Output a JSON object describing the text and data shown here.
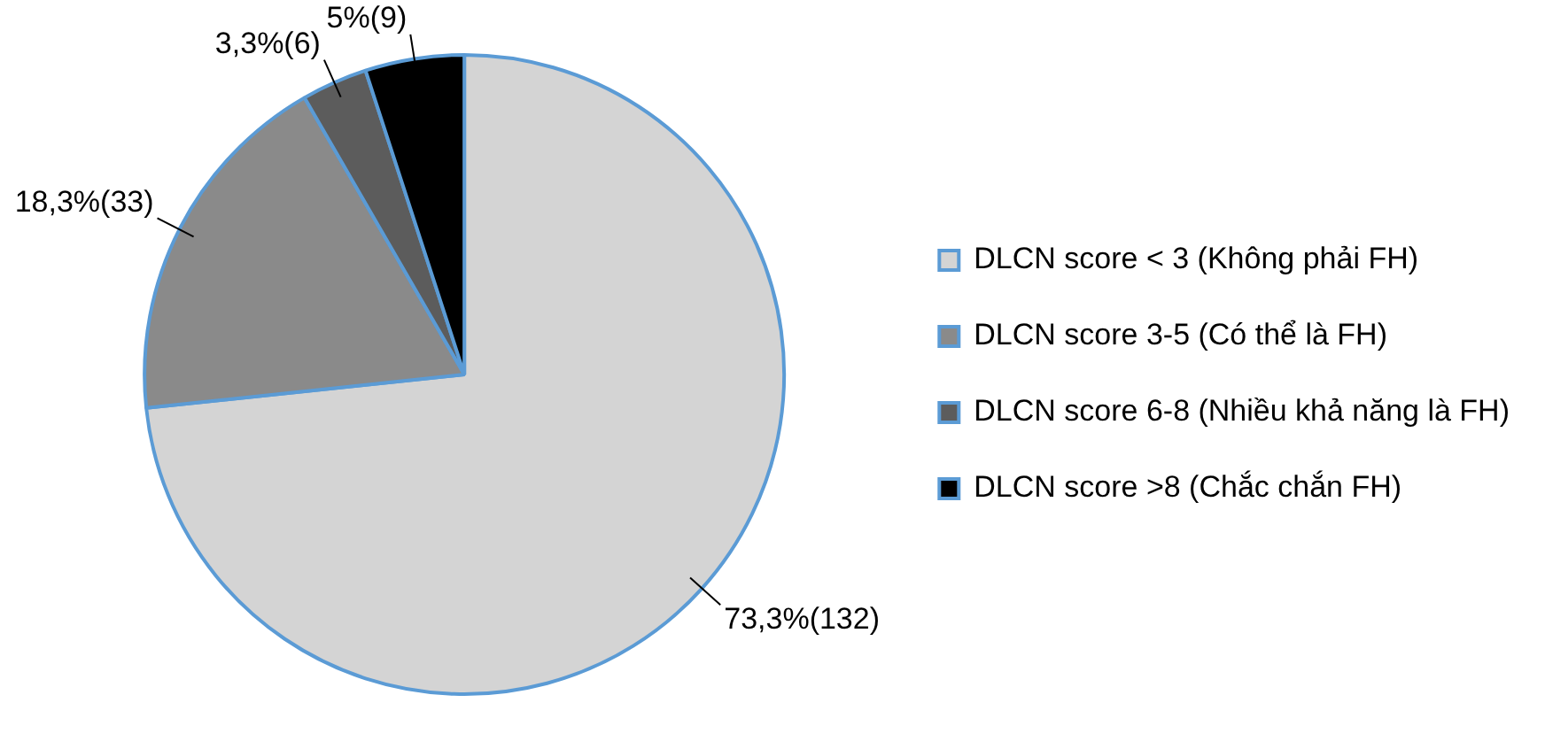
{
  "chart_data": {
    "type": "pie",
    "categories": [
      "DLCN score < 3 (Không phải FH)",
      "DLCN score 3-5 (Có thể là FH)",
      "DLCN score 6-8 (Nhiều khả năng là FH)",
      "DLCN score >8 (Chắc chắn FH)"
    ],
    "values": [
      132,
      33,
      6,
      9
    ],
    "value_labels": [
      "73,3%(132)",
      "18,3%(33)",
      "3,3%(6)",
      "5%(9)"
    ],
    "colors": [
      "#d4d4d4",
      "#8a8a8a",
      "#5c5c5c",
      "#000000"
    ],
    "legend": "right"
  }
}
